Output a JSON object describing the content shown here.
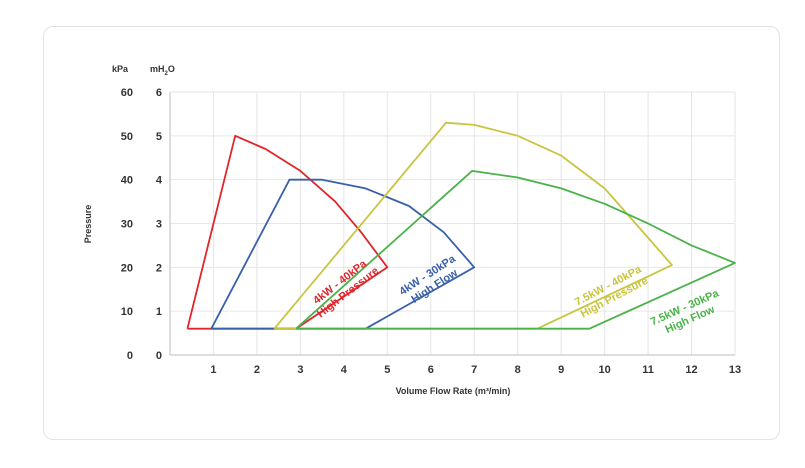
{
  "chart_data": {
    "type": "line",
    "xlabel": "Volume Flow Rate (m³/min)",
    "ylabel": "Pressure",
    "left_unit": "kPa",
    "right_unit_base": "mH",
    "right_unit_sub": "2",
    "right_unit_tail": "O",
    "x_ticks": [
      "1",
      "2",
      "3",
      "4",
      "5",
      "6",
      "7",
      "8",
      "9",
      "10",
      "11",
      "12",
      "13"
    ],
    "x_origin_label": "0",
    "y_kpa_ticks": [
      "0",
      "10",
      "20",
      "30",
      "40",
      "50",
      "60"
    ],
    "y_mh2o_ticks": [
      "1",
      "2",
      "3",
      "4",
      "5",
      "6"
    ],
    "xlim": [
      0,
      13
    ],
    "ylim_mh2o": [
      0,
      6
    ],
    "grid": true,
    "series": [
      {
        "label_line1": "4kW - 40kPa",
        "label_line2": "High Pressure",
        "color": "#e0262b",
        "points": [
          [
            0.4,
            0.6
          ],
          [
            1.5,
            5.0
          ],
          [
            2.2,
            4.7
          ],
          [
            3.0,
            4.2
          ],
          [
            3.8,
            3.5
          ],
          [
            4.4,
            2.8
          ],
          [
            5.0,
            2.0
          ],
          [
            2.9,
            0.6
          ],
          [
            0.4,
            0.6
          ]
        ]
      },
      {
        "label_line1": "4kW - 30kPa",
        "label_line2": "High Flow",
        "color": "#3a60aa",
        "points": [
          [
            0.95,
            0.6
          ],
          [
            2.75,
            4.0
          ],
          [
            3.5,
            4.0
          ],
          [
            4.5,
            3.8
          ],
          [
            5.5,
            3.4
          ],
          [
            6.3,
            2.8
          ],
          [
            7.0,
            2.0
          ],
          [
            4.5,
            0.6
          ],
          [
            0.95,
            0.6
          ]
        ]
      },
      {
        "label_line1": "7.5kW - 40kPa",
        "label_line2": "High Pressure",
        "color": "#c8c540",
        "points": [
          [
            2.4,
            0.6
          ],
          [
            6.35,
            5.3
          ],
          [
            7.0,
            5.25
          ],
          [
            8.0,
            5.0
          ],
          [
            9.0,
            4.55
          ],
          [
            10.0,
            3.8
          ],
          [
            10.8,
            2.9
          ],
          [
            11.55,
            2.05
          ],
          [
            8.45,
            0.6
          ],
          [
            2.4,
            0.6
          ]
        ]
      },
      {
        "label_line1": "7.5kW - 30kPa",
        "label_line2": "High Flow",
        "color": "#4bb24a",
        "points": [
          [
            2.9,
            0.6
          ],
          [
            6.95,
            4.2
          ],
          [
            8.0,
            4.05
          ],
          [
            9.0,
            3.8
          ],
          [
            10.0,
            3.45
          ],
          [
            11.0,
            3.0
          ],
          [
            12.0,
            2.5
          ],
          [
            13.0,
            2.1
          ],
          [
            9.65,
            0.6
          ],
          [
            2.9,
            0.6
          ]
        ]
      }
    ]
  }
}
